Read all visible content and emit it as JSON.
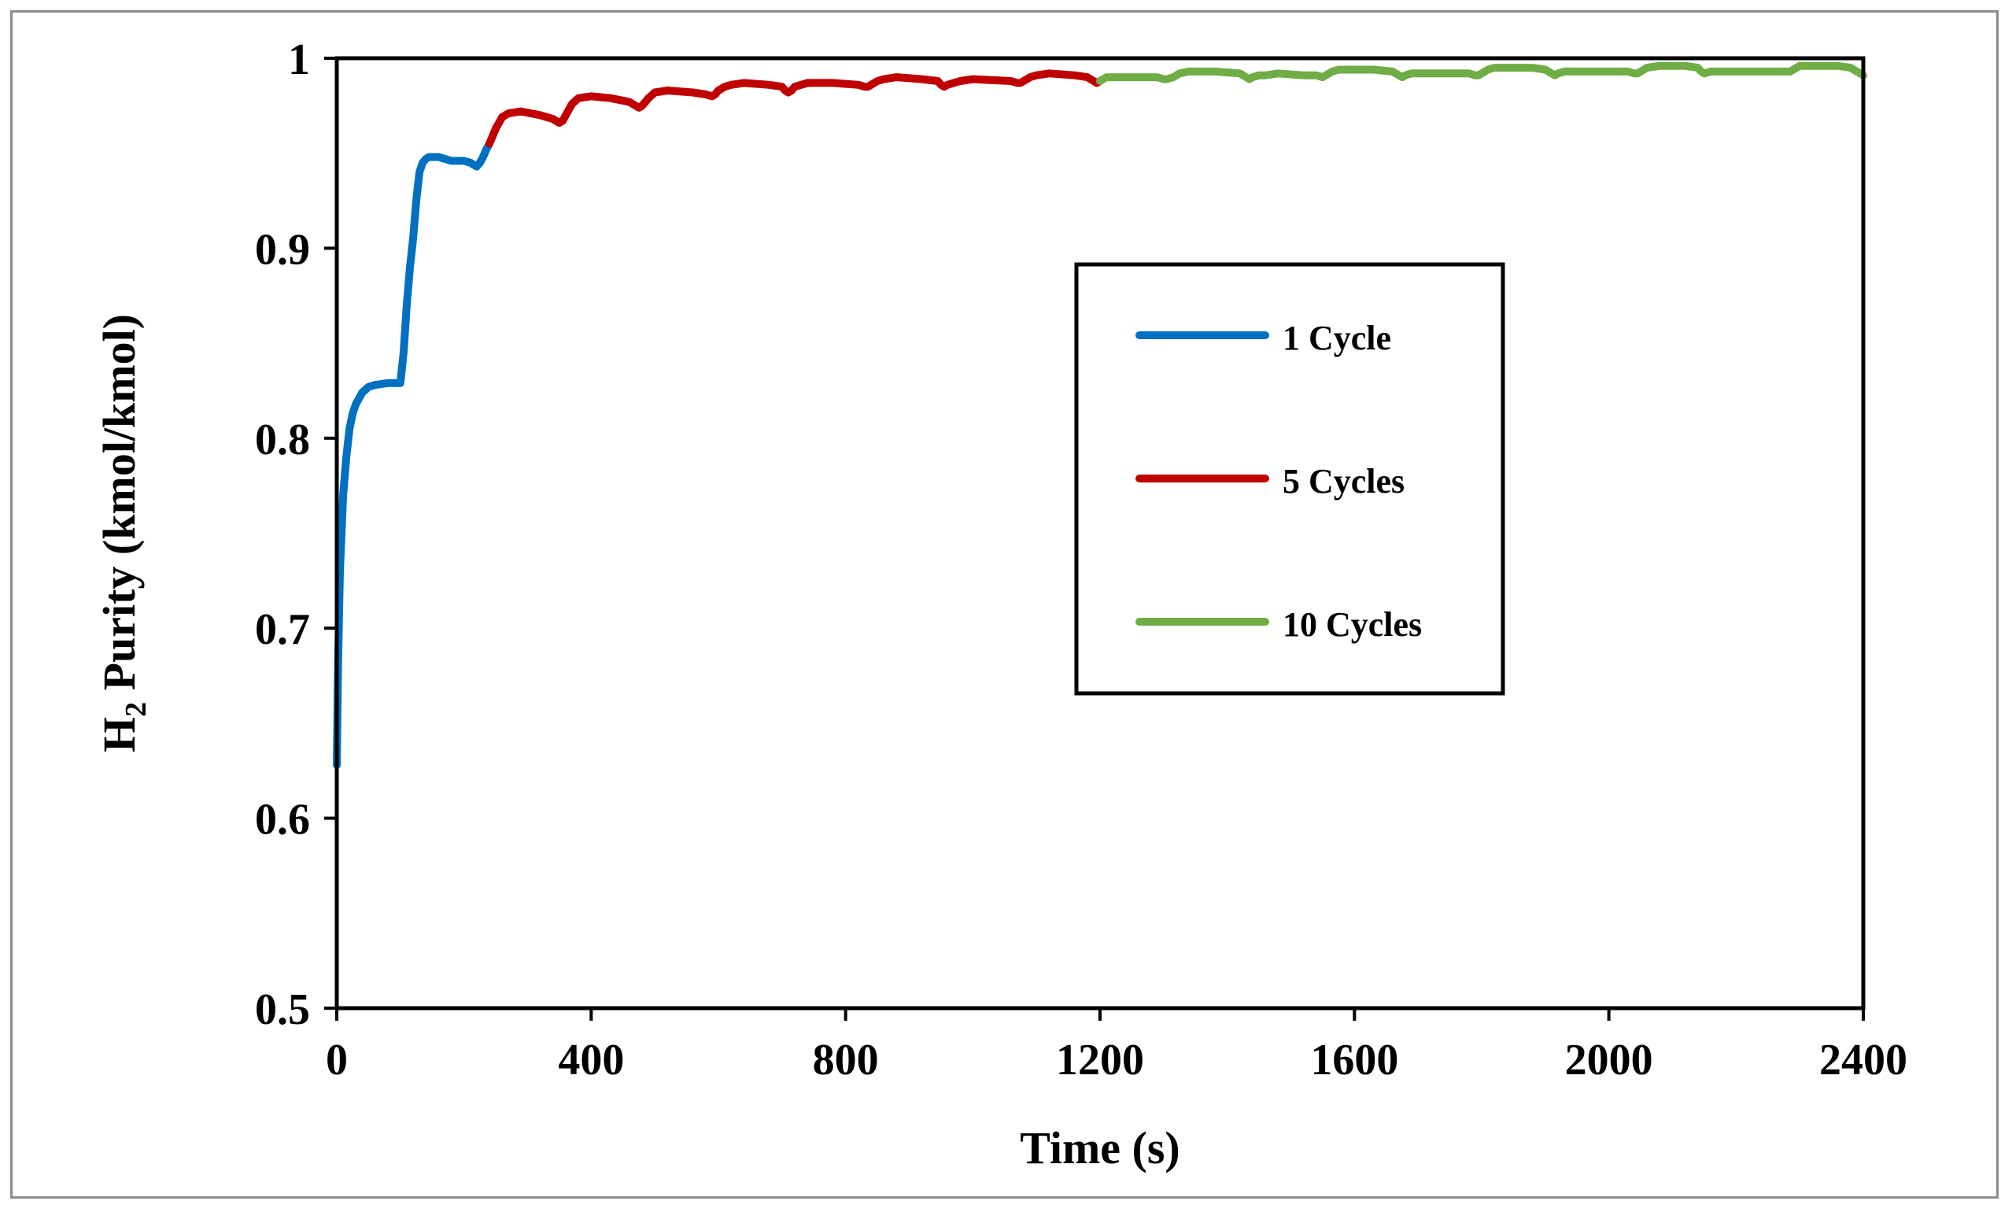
{
  "chart_data": {
    "type": "line",
    "xlabel": "Time (s)",
    "ylabel_main": "H",
    "ylabel_sub": "2",
    "ylabel_rest": " Purity (kmol/kmol)",
    "xlim": [
      0,
      2400
    ],
    "ylim": [
      0.5,
      1.0
    ],
    "xticks": [
      0,
      400,
      800,
      1200,
      1600,
      2000,
      2400
    ],
    "xtick_labels": [
      "0",
      "400",
      "800",
      "1200",
      "1600",
      "2000",
      "2400"
    ],
    "yticks": [
      0.5,
      0.6,
      0.7,
      0.8,
      0.9,
      1.0
    ],
    "ytick_labels": [
      "0.5",
      "0.6",
      "0.7",
      "0.8",
      "0.9",
      "1"
    ],
    "grid": false,
    "legend_position": "center-right",
    "series": [
      {
        "name": "1 Cycle",
        "color": "#0070c0",
        "x": [
          0,
          2,
          5,
          10,
          15,
          20,
          25,
          30,
          40,
          50,
          60,
          80,
          100,
          105,
          110,
          115,
          120,
          125,
          130,
          135,
          140,
          145,
          150,
          155,
          160,
          170,
          180,
          200,
          210,
          215,
          220,
          225,
          230,
          235,
          240
        ],
        "y": [
          0.628,
          0.68,
          0.73,
          0.77,
          0.79,
          0.805,
          0.813,
          0.818,
          0.824,
          0.827,
          0.828,
          0.829,
          0.829,
          0.845,
          0.87,
          0.89,
          0.905,
          0.925,
          0.94,
          0.945,
          0.947,
          0.948,
          0.948,
          0.948,
          0.948,
          0.947,
          0.946,
          0.946,
          0.945,
          0.944,
          0.943,
          0.945,
          0.948,
          0.952,
          0.955
        ]
      },
      {
        "name": "5 Cycles",
        "color": "#c00000",
        "x": [
          240,
          250,
          260,
          270,
          290,
          320,
          340,
          350,
          355,
          360,
          370,
          380,
          400,
          430,
          460,
          470,
          475,
          480,
          490,
          500,
          520,
          560,
          580,
          590,
          595,
          600,
          610,
          620,
          640,
          680,
          700,
          705,
          710,
          715,
          720,
          730,
          740,
          780,
          820,
          830,
          835,
          840,
          850,
          860,
          880,
          920,
          945,
          950,
          955,
          960,
          980,
          1000,
          1060,
          1070,
          1075,
          1080,
          1090,
          1100,
          1120,
          1160,
          1180,
          1190,
          1195,
          1200
        ],
        "y": [
          0.955,
          0.963,
          0.969,
          0.971,
          0.972,
          0.97,
          0.968,
          0.966,
          0.967,
          0.97,
          0.976,
          0.979,
          0.98,
          0.979,
          0.977,
          0.975,
          0.974,
          0.975,
          0.979,
          0.982,
          0.983,
          0.982,
          0.981,
          0.98,
          0.981,
          0.983,
          0.985,
          0.986,
          0.987,
          0.986,
          0.985,
          0.983,
          0.982,
          0.983,
          0.985,
          0.986,
          0.987,
          0.987,
          0.986,
          0.985,
          0.985,
          0.986,
          0.988,
          0.989,
          0.99,
          0.989,
          0.988,
          0.986,
          0.985,
          0.986,
          0.988,
          0.989,
          0.988,
          0.987,
          0.987,
          0.988,
          0.99,
          0.991,
          0.992,
          0.991,
          0.99,
          0.988,
          0.987,
          0.988
        ]
      },
      {
        "name": "10 Cycles",
        "color": "#70ad47",
        "x": [
          1200,
          1210,
          1220,
          1240,
          1270,
          1290,
          1300,
          1305,
          1315,
          1325,
          1340,
          1380,
          1420,
          1430,
          1435,
          1440,
          1450,
          1460,
          1480,
          1520,
          1540,
          1550,
          1555,
          1565,
          1575,
          1590,
          1630,
          1660,
          1670,
          1675,
          1680,
          1690,
          1700,
          1730,
          1780,
          1790,
          1795,
          1800,
          1810,
          1820,
          1840,
          1880,
          1900,
          1910,
          1915,
          1920,
          1930,
          1950,
          1990,
          2030,
          2040,
          2045,
          2050,
          2060,
          2080,
          2120,
          2140,
          2145,
          2150,
          2160,
          2180,
          2230,
          2270,
          2280,
          2285,
          2290,
          2300,
          2320,
          2360,
          2380,
          2390,
          2395,
          2400
        ],
        "y": [
          0.988,
          0.99,
          0.99,
          0.99,
          0.99,
          0.99,
          0.989,
          0.989,
          0.99,
          0.992,
          0.993,
          0.993,
          0.992,
          0.99,
          0.989,
          0.99,
          0.991,
          0.991,
          0.992,
          0.991,
          0.991,
          0.99,
          0.991,
          0.993,
          0.994,
          0.994,
          0.994,
          0.993,
          0.991,
          0.99,
          0.991,
          0.992,
          0.992,
          0.992,
          0.992,
          0.991,
          0.991,
          0.992,
          0.994,
          0.995,
          0.995,
          0.995,
          0.994,
          0.992,
          0.991,
          0.992,
          0.993,
          0.993,
          0.993,
          0.993,
          0.992,
          0.992,
          0.993,
          0.995,
          0.996,
          0.996,
          0.995,
          0.993,
          0.992,
          0.993,
          0.993,
          0.993,
          0.993,
          0.993,
          0.993,
          0.994,
          0.996,
          0.996,
          0.996,
          0.995,
          0.993,
          0.992,
          0.991
        ]
      }
    ]
  }
}
